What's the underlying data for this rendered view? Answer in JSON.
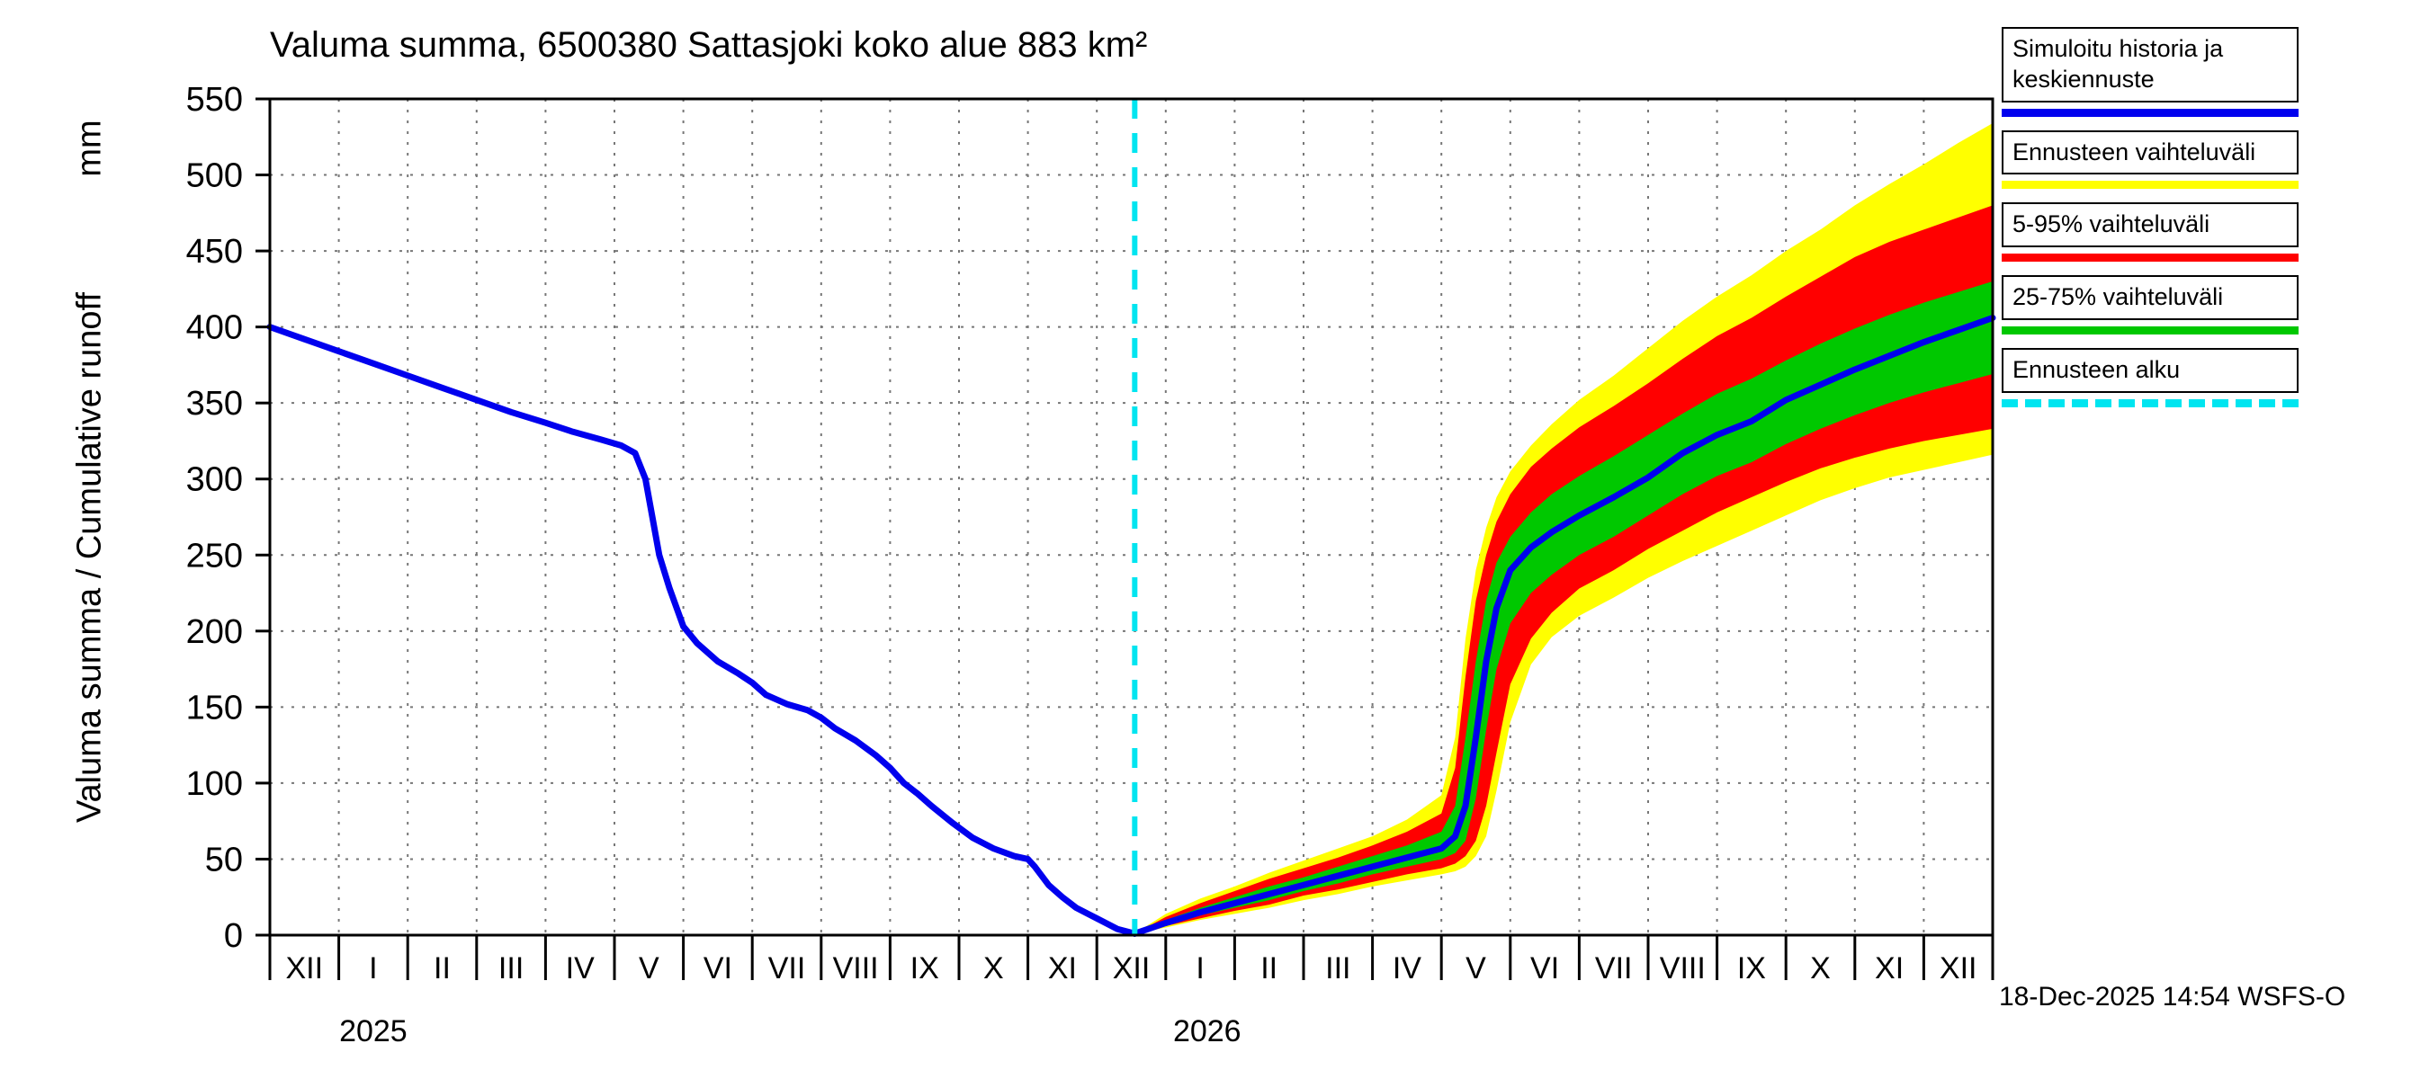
{
  "title": "Valuma summa, 6500380 Sattasjoki koko alue 883 km²",
  "footer": {
    "text": "18-Dec-2025 14:54 WSFS-O"
  },
  "legend": [
    {
      "label": "Simuloitu historia ja keskiennuste",
      "color": "#0000ee",
      "style": "solid"
    },
    {
      "label": "Ennusteen vaihteluväli",
      "color": "#ffff00",
      "style": "solid"
    },
    {
      "label": "5-95% vaihteluväli",
      "color": "#ff0000",
      "style": "solid"
    },
    {
      "label": "25-75% vaihteluväli",
      "color": "#00c800",
      "style": "solid"
    },
    {
      "label": "Ennusteen alku",
      "color": "#00e5f0",
      "style": "dashed"
    }
  ],
  "chart_data": {
    "type": "line",
    "title": "Valuma summa, 6500380 Sattasjoki koko alue 883 km²",
    "ylabel": "Valuma summa / Cumulative runoff",
    "ylabel_unit": "mm",
    "xlabel": "",
    "grid": true,
    "legend_position": "top-right",
    "xlim": [
      0,
      25
    ],
    "ylim": [
      0,
      550
    ],
    "y_ticks": [
      0,
      50,
      100,
      150,
      200,
      250,
      300,
      350,
      400,
      450,
      500,
      550
    ],
    "x_ticks": [
      0,
      1,
      2,
      3,
      4,
      5,
      6,
      7,
      8,
      9,
      10,
      11,
      12,
      13,
      14,
      15,
      16,
      17,
      18,
      19,
      20,
      21,
      22,
      23,
      24,
      25
    ],
    "x_tick_labels": [
      "XII",
      "I",
      "II",
      "III",
      "IV",
      "V",
      "VI",
      "VII",
      "VIII",
      "IX",
      "X",
      "XI",
      "XII",
      "I",
      "II",
      "III",
      "IV",
      "V",
      "VI",
      "VII",
      "VIII",
      "IX",
      "X",
      "XI",
      "XII"
    ],
    "year_labels": [
      {
        "text": "2025",
        "month": 1.5
      },
      {
        "text": "2026",
        "month": 13.6
      }
    ],
    "forecast_start_month": 12.55,
    "colors": {
      "median": "#0000ee",
      "range": "#ffff00",
      "p5_95": "#ff0000",
      "p25_75": "#00c800",
      "forecast_start": "#00e5f0",
      "grid": "#777777"
    },
    "history": {
      "name": "Simuloitu historia",
      "months": [
        0,
        0.5,
        1,
        1.5,
        2,
        2.5,
        3,
        3.5,
        4,
        4.4,
        4.8,
        5.1,
        5.3,
        5.45,
        5.55,
        5.65,
        5.8,
        6,
        6.2,
        6.5,
        6.8,
        7,
        7.2,
        7.5,
        7.8,
        8,
        8.2,
        8.5,
        8.8,
        9,
        9.2,
        9.4,
        9.6,
        9.9,
        10.2,
        10.5,
        10.8,
        11,
        11.1,
        11.3,
        11.5,
        11.7,
        12,
        12.3,
        12.55
      ],
      "values": [
        400,
        392,
        384,
        376,
        368,
        360,
        352,
        344,
        337,
        331,
        326,
        322,
        317,
        300,
        275,
        250,
        228,
        203,
        192,
        180,
        172,
        166,
        158,
        152,
        148,
        143,
        136,
        128,
        118,
        110,
        100,
        93,
        85,
        74,
        64,
        57,
        52,
        50,
        45,
        33,
        25,
        18,
        11,
        4,
        1
      ]
    },
    "forecast": {
      "name": "Keskiennuste ja vaihteluvälit",
      "months": [
        12.55,
        13,
        13.5,
        14,
        14.5,
        15,
        15.5,
        16,
        16.5,
        17,
        17.2,
        17.35,
        17.5,
        17.65,
        17.8,
        18,
        18.3,
        18.6,
        19,
        19.5,
        20,
        20.5,
        21,
        21.5,
        22,
        22.5,
        23,
        23.5,
        24,
        24.5,
        25
      ],
      "median": [
        1,
        8,
        15,
        21,
        27,
        33,
        39,
        45,
        51,
        57,
        65,
        85,
        130,
        180,
        215,
        240,
        255,
        265,
        276,
        288,
        301,
        317,
        329,
        338,
        352,
        362,
        372,
        381,
        390,
        398,
        406
      ],
      "p25": [
        1,
        7,
        13,
        18,
        23,
        29,
        34,
        40,
        45,
        50,
        54,
        62,
        90,
        135,
        175,
        205,
        225,
        237,
        250,
        262,
        276,
        290,
        302,
        311,
        323,
        333,
        342,
        350,
        357,
        363,
        369
      ],
      "p75": [
        1,
        10,
        18,
        25,
        32,
        38,
        45,
        52,
        59,
        68,
        85,
        130,
        180,
        220,
        245,
        262,
        278,
        290,
        302,
        315,
        329,
        343,
        356,
        366,
        378,
        389,
        399,
        408,
        416,
        423,
        430
      ],
      "p5": [
        1,
        6,
        11,
        16,
        20,
        26,
        30,
        35,
        40,
        44,
        47,
        52,
        62,
        85,
        120,
        165,
        195,
        212,
        228,
        240,
        254,
        266,
        278,
        288,
        298,
        307,
        314,
        320,
        325,
        329,
        333
      ],
      "p95": [
        1,
        12,
        21,
        29,
        37,
        44,
        51,
        59,
        68,
        80,
        110,
        170,
        220,
        250,
        272,
        290,
        308,
        320,
        334,
        348,
        363,
        379,
        394,
        406,
        420,
        433,
        446,
        456,
        464,
        472,
        480
      ],
      "min": [
        1,
        5,
        10,
        14,
        18,
        23,
        27,
        32,
        36,
        40,
        42,
        45,
        52,
        65,
        95,
        140,
        178,
        196,
        210,
        222,
        235,
        246,
        256,
        266,
        276,
        286,
        294,
        301,
        306,
        311,
        316
      ],
      "max": [
        1,
        14,
        24,
        32,
        41,
        49,
        57,
        65,
        76,
        92,
        130,
        195,
        240,
        268,
        288,
        305,
        322,
        336,
        352,
        368,
        386,
        404,
        420,
        434,
        450,
        464,
        480,
        494,
        507,
        521,
        534
      ]
    }
  }
}
